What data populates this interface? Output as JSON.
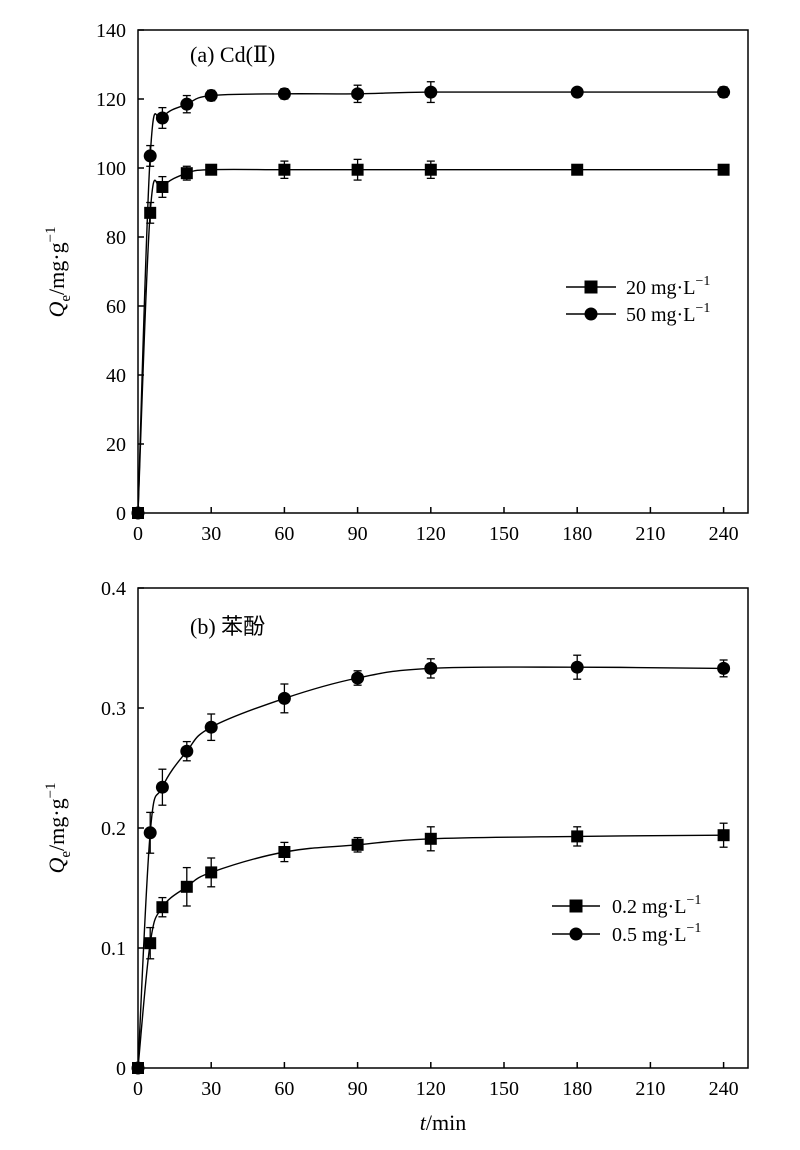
{
  "chart_data": [
    {
      "type": "line",
      "panel_label": "(a) Cd(Ⅱ)",
      "xlabel_main": "",
      "xlabel_unit": "",
      "ylabel_main": "Q",
      "ylabel_sub": "e",
      "ylabel_unit": "/mg·g",
      "ylabel_sup": "−1",
      "xlim": [
        0,
        250
      ],
      "ylim": [
        0,
        140
      ],
      "xticks": [
        0,
        30,
        60,
        90,
        120,
        150,
        180,
        210,
        240
      ],
      "yticks": [
        0,
        20,
        40,
        60,
        80,
        100,
        120,
        140
      ],
      "tick_decimals": 0,
      "legend_position": "center-right",
      "series": [
        {
          "name": "20 mg·L",
          "name_sup": "−1",
          "marker": "square",
          "x": [
            0,
            5,
            10,
            20,
            30,
            60,
            90,
            120,
            180,
            240
          ],
          "y": [
            0,
            87,
            94.5,
            98.5,
            99.5,
            99.5,
            99.5,
            99.5,
            99.5,
            99.5
          ],
          "err": [
            0,
            3,
            3,
            2,
            1,
            2.5,
            3,
            2.5,
            1,
            1
          ]
        },
        {
          "name": "50 mg·L",
          "name_sup": "−1",
          "marker": "circle",
          "x": [
            0,
            5,
            10,
            20,
            30,
            60,
            90,
            120,
            180,
            240
          ],
          "y": [
            0,
            103.5,
            114.5,
            118.5,
            121,
            121.5,
            121.5,
            122,
            122,
            122
          ],
          "err": [
            0,
            3,
            3,
            2.5,
            1.5,
            1.5,
            2.5,
            3,
            1,
            1.5
          ]
        }
      ]
    },
    {
      "type": "line",
      "panel_label": "(b) 苯酚",
      "xlabel_main": "t",
      "xlabel_unit": "/min",
      "ylabel_main": "Q",
      "ylabel_sub": "e",
      "ylabel_unit": "/mg·g",
      "ylabel_sup": "−1",
      "xlim": [
        0,
        250
      ],
      "ylim": [
        0,
        0.4
      ],
      "xticks": [
        0,
        30,
        60,
        90,
        120,
        150,
        180,
        210,
        240
      ],
      "yticks": [
        0,
        0.1,
        0.2,
        0.3,
        0.4
      ],
      "tick_decimals": 1,
      "legend_position": "lower-right",
      "series": [
        {
          "name": "0.2 mg·L",
          "name_sup": "−1",
          "marker": "square",
          "x": [
            0,
            5,
            10,
            20,
            30,
            60,
            90,
            120,
            180,
            240
          ],
          "y": [
            0,
            0.104,
            0.134,
            0.151,
            0.163,
            0.18,
            0.186,
            0.191,
            0.193,
            0.194
          ],
          "err": [
            0,
            0.013,
            0.008,
            0.016,
            0.012,
            0.008,
            0.006,
            0.01,
            0.008,
            0.01
          ]
        },
        {
          "name": "0.5 mg·L",
          "name_sup": "−1",
          "marker": "circle",
          "x": [
            0,
            5,
            10,
            20,
            30,
            60,
            90,
            120,
            180,
            240
          ],
          "y": [
            0,
            0.196,
            0.234,
            0.264,
            0.284,
            0.308,
            0.325,
            0.333,
            0.334,
            0.333
          ],
          "err": [
            0,
            0.017,
            0.015,
            0.008,
            0.011,
            0.012,
            0.006,
            0.008,
            0.01,
            0.007
          ]
        }
      ]
    }
  ]
}
